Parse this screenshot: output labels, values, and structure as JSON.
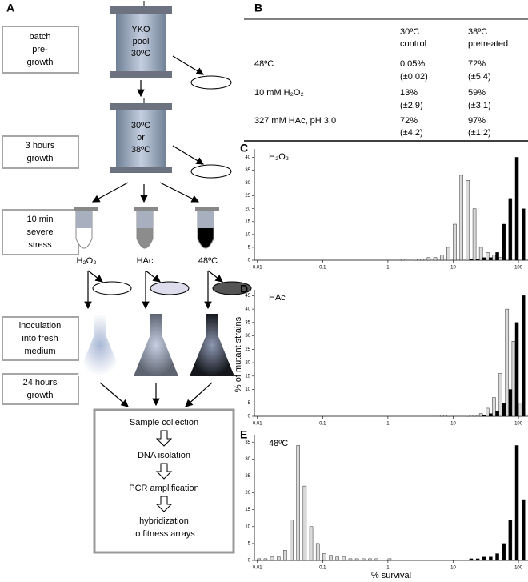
{
  "panel_a": {
    "label": "A",
    "steps": [
      [
        "batch",
        "pre-",
        "growth"
      ],
      [
        "3 hours",
        "growth"
      ],
      [
        "10 min",
        "severe",
        "stress"
      ],
      [
        "inoculation",
        "into fresh",
        "medium"
      ],
      [
        "24 hours",
        "growth"
      ]
    ],
    "vessels": [
      [
        "YKO",
        "pool",
        "30ºC"
      ],
      [
        "30ºC",
        "or",
        "38ºC"
      ]
    ],
    "stresses": [
      "H₂O₂",
      "HAc",
      "48ºC"
    ],
    "workflow": [
      [
        "Sample collection"
      ],
      [
        "DNA isolation"
      ],
      [
        "PCR amplification"
      ],
      [
        "hybridization",
        "to fitness arrays"
      ]
    ]
  },
  "table": {
    "label": "B",
    "columns": [
      [
        "30ºC",
        "control"
      ],
      [
        "38ºC",
        "pretreated"
      ]
    ],
    "rows": [
      {
        "stress": "48ºC",
        "control": [
          "0.05%",
          "(±0.02)"
        ],
        "pretreated": [
          "72%",
          "(±5.4)"
        ]
      },
      {
        "stress": "10 mM H₂O₂",
        "control": [
          "13%",
          "(±2.9)"
        ],
        "pretreated": [
          "59%",
          "(±3.1)"
        ]
      },
      {
        "stress": "327 mM HAc, pH 3.0",
        "control": [
          "72%",
          "(±4.2)"
        ],
        "pretreated": [
          "97%",
          "(±1.2)"
        ]
      }
    ]
  },
  "chart_data": [
    {
      "type": "histogram",
      "label": "C",
      "annotation": "H₂O₂",
      "log_x": true,
      "xlim": [
        0.009,
        140
      ],
      "xticks": [
        0.01,
        0.1,
        1,
        10,
        100
      ],
      "ylim": [
        0,
        42
      ],
      "yticks": [
        0,
        5,
        10,
        15,
        20,
        25,
        30,
        35,
        40
      ],
      "bins": [
        0.01,
        0.0126,
        0.0158,
        0.02,
        0.0251,
        0.0316,
        0.0398,
        0.0501,
        0.0631,
        0.0794,
        0.1,
        0.126,
        0.158,
        0.2,
        0.251,
        0.316,
        0.398,
        0.501,
        0.631,
        0.794,
        1,
        1.26,
        1.58,
        2,
        2.51,
        3.16,
        3.98,
        5.01,
        6.31,
        7.94,
        10,
        12.6,
        15.8,
        20,
        25.1,
        31.6,
        39.8,
        50.1,
        63.1,
        79.4,
        100,
        126
      ],
      "series": [
        {
          "color": "#d9d9d9",
          "values": [
            0,
            0,
            0,
            0,
            0,
            0,
            0,
            0,
            0,
            0,
            0,
            0,
            0,
            0,
            0,
            0,
            0,
            0,
            0,
            0,
            0,
            0,
            0.5,
            0,
            0.5,
            0.5,
            1,
            1,
            2,
            5,
            14,
            33,
            31,
            20,
            5,
            3,
            2,
            1,
            0.5,
            0,
            0
          ]
        },
        {
          "color": "#000000",
          "values": [
            0,
            0,
            0,
            0,
            0,
            0,
            0,
            0,
            0,
            0,
            0,
            0,
            0,
            0,
            0,
            0,
            0,
            0,
            0,
            0,
            0,
            0,
            0,
            0,
            0,
            0,
            0,
            0,
            0,
            0,
            0,
            0,
            0.5,
            0.5,
            1,
            1,
            3,
            14,
            24,
            40,
            20
          ]
        }
      ]
    },
    {
      "type": "histogram",
      "label": "D",
      "annotation": "HAc",
      "log_x": true,
      "y_label": "% of mutant strains",
      "xlim": [
        0.009,
        140
      ],
      "xticks": [
        0.01,
        0.1,
        1,
        10,
        100
      ],
      "ylim": [
        0,
        46
      ],
      "yticks": [
        0,
        5,
        10,
        15,
        20,
        25,
        30,
        35,
        40,
        45
      ],
      "bins": [
        0.01,
        0.0126,
        0.0158,
        0.02,
        0.0251,
        0.0316,
        0.0398,
        0.0501,
        0.0631,
        0.0794,
        0.1,
        0.126,
        0.158,
        0.2,
        0.251,
        0.316,
        0.398,
        0.501,
        0.631,
        0.794,
        1,
        1.26,
        1.58,
        2,
        2.51,
        3.16,
        3.98,
        5.01,
        6.31,
        7.94,
        10,
        12.6,
        15.8,
        20,
        25.1,
        31.6,
        39.8,
        50.1,
        63.1,
        79.4,
        100,
        126
      ],
      "series": [
        {
          "color": "#d9d9d9",
          "values": [
            0,
            0,
            0,
            0,
            0,
            0,
            0,
            0,
            0,
            0,
            0,
            0,
            0,
            0,
            0,
            0,
            0,
            0,
            0,
            0,
            0,
            0,
            0,
            0,
            0,
            0,
            0,
            0,
            0.5,
            0.5,
            0,
            0,
            0.5,
            0.5,
            1,
            3,
            7,
            16,
            40,
            28,
            5
          ]
        },
        {
          "color": "#000000",
          "values": [
            0,
            0,
            0,
            0,
            0,
            0,
            0,
            0,
            0,
            0,
            0,
            0,
            0,
            0,
            0,
            0,
            0,
            0,
            0,
            0,
            0,
            0,
            0,
            0,
            0,
            0,
            0,
            0,
            0,
            0,
            0,
            0,
            0,
            0,
            0.5,
            1,
            2,
            5,
            10,
            35,
            45
          ]
        }
      ]
    },
    {
      "type": "histogram",
      "label": "E",
      "annotation": "48ºC",
      "log_x": true,
      "x_label": "% survival",
      "xlim": [
        0.009,
        140
      ],
      "xticks": [
        0.01,
        0.1,
        1,
        10,
        100
      ],
      "ylim": [
        0,
        36
      ],
      "yticks": [
        0,
        5,
        10,
        15,
        20,
        25,
        30,
        35
      ],
      "bins": [
        0.01,
        0.0126,
        0.0158,
        0.02,
        0.0251,
        0.0316,
        0.0398,
        0.0501,
        0.0631,
        0.0794,
        0.1,
        0.126,
        0.158,
        0.2,
        0.251,
        0.316,
        0.398,
        0.501,
        0.631,
        0.794,
        1,
        1.26,
        1.58,
        2,
        2.51,
        3.16,
        3.98,
        5.01,
        6.31,
        7.94,
        10,
        12.6,
        15.8,
        20,
        25.1,
        31.6,
        39.8,
        50.1,
        63.1,
        79.4,
        100,
        126
      ],
      "series": [
        {
          "color": "#d9d9d9",
          "values": [
            0.5,
            0.5,
            1,
            1,
            3,
            12,
            34,
            22,
            10,
            5,
            2,
            1.5,
            1,
            1,
            0.5,
            0.5,
            0.5,
            0.5,
            0.5,
            0,
            0.5,
            0,
            0,
            0,
            0,
            0,
            0,
            0,
            0,
            0,
            0,
            0,
            0,
            0,
            0,
            0,
            0,
            0,
            0,
            0,
            0
          ]
        },
        {
          "color": "#000000",
          "values": [
            0,
            0,
            0,
            0,
            0,
            0,
            0,
            0,
            0,
            0,
            0,
            0,
            0,
            0,
            0,
            0,
            0,
            0,
            0,
            0,
            0,
            0,
            0,
            0,
            0,
            0,
            0,
            0,
            0,
            0,
            0,
            0,
            0.5,
            0.5,
            1,
            1,
            2,
            5,
            12,
            34,
            18
          ]
        }
      ]
    }
  ]
}
